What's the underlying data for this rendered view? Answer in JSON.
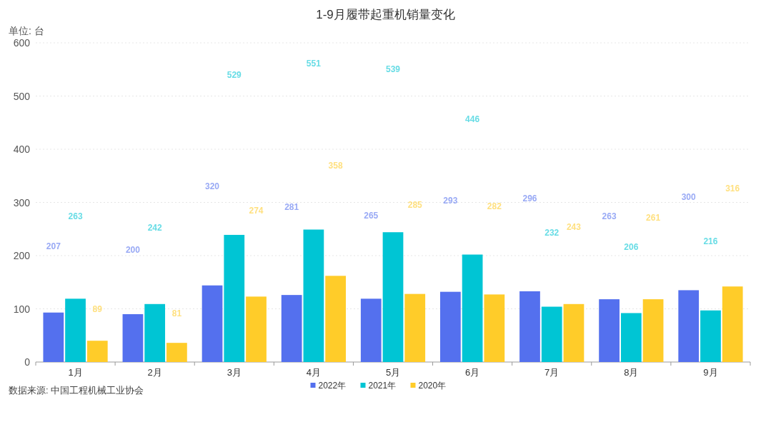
{
  "chart_data": {
    "type": "bar",
    "title": "1-9月履带起重机销量变化",
    "ylabel": "单位: 台",
    "categories": [
      "1月",
      "2月",
      "3月",
      "4月",
      "5月",
      "6月",
      "7月",
      "8月",
      "9月"
    ],
    "series": [
      {
        "name": "2022年",
        "color": "#5470ee",
        "values": [
          93,
          90,
          144,
          126,
          119,
          132,
          133,
          118,
          135
        ]
      },
      {
        "name": "2021年",
        "color": "#00c5d4",
        "values": [
          119,
          109,
          239,
          249,
          244,
          202,
          104,
          92,
          97
        ]
      },
      {
        "name": "2020年",
        "color": "#ffcc29",
        "values": [
          40,
          36,
          123,
          162,
          128,
          127,
          109,
          118,
          142
        ]
      }
    ],
    "ylim": [
      0,
      600
    ],
    "yticks": [
      0,
      100,
      200,
      300,
      400,
      500,
      600
    ],
    "grid": "y",
    "legend": "bottom",
    "annotations": [
      "207",
      "263",
      "89",
      "200",
      "242",
      "81",
      "320",
      "529",
      "274",
      "281",
      "551",
      "358",
      "265",
      "539",
      "285",
      "293",
      "446",
      "282",
      "296",
      "232",
      "243",
      "263",
      "206",
      "261",
      "300",
      "216",
      "316",
      "数据来源: 中国工程机械工业协会"
    ]
  }
}
